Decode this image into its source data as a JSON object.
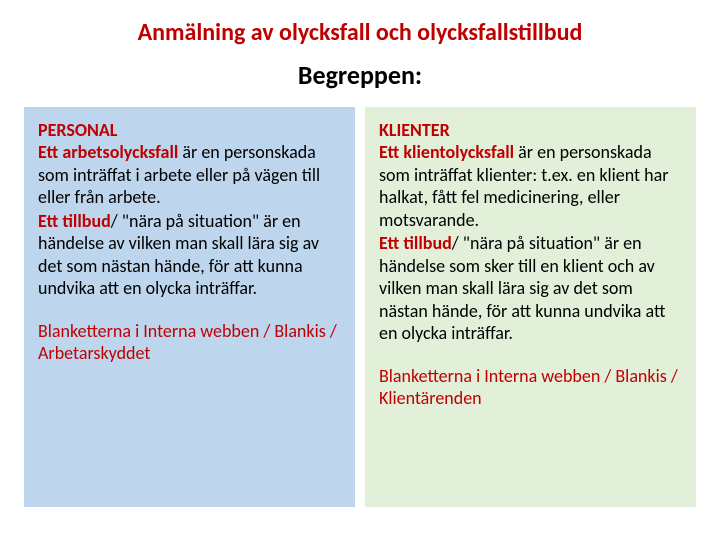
{
  "title": {
    "text": "Anmälning av olycksfall och olycksfallstillbud",
    "color": "#c00000"
  },
  "subtitle": {
    "text": "Begreppen:"
  },
  "left": {
    "bg": "#bdd6ee",
    "accent": "#c00000",
    "heading": "PERSONAL",
    "p1_lead": "Ett arbetsolycksfall",
    "p1_rest": " är en personskada som inträffat i arbete eller på vägen till eller från arbete.",
    "p2_lead": "Ett tillbud",
    "p2_rest": "/ \"nära på situation\" är en händelse av vilken man skall lära sig av det som nästan hände, för att kunna undvika att en olycka inträffar.",
    "footer": "Blanketterna i Interna webben / Blankis / Arbetarskyddet"
  },
  "right": {
    "bg": "#e2efd9",
    "accent": "#c00000",
    "heading": "KLIENTER",
    "p1_lead": "Ett klientolycksfall",
    "p1_rest": " är en personskada som inträffat klienter: t.ex. en klient har halkat, fått fel medicinering, eller motsvarande.",
    "p2_lead": "Ett tillbud",
    "p2_rest": "/ \"nära på situation\" är en händelse som sker till en klient och av vilken man skall lära sig av det som nästan hände, för att kunna undvika att en olycka inträffar.",
    "footer": "Blanketterna i Interna webben / Blankis / Klientärenden"
  }
}
